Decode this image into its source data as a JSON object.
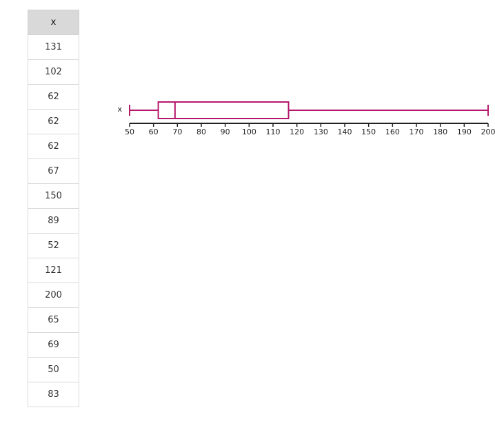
{
  "table": {
    "header": "x",
    "values": [
      131,
      102,
      62,
      62,
      62,
      67,
      150,
      89,
      52,
      121,
      200,
      65,
      69,
      50,
      83
    ]
  },
  "chart_data": {
    "type": "boxplot",
    "series": [
      {
        "name": "x",
        "min": 50,
        "q1": 62,
        "median": 69,
        "q3": 116.5,
        "max": 200
      }
    ],
    "xlim": [
      50,
      200
    ],
    "ticks": [
      50,
      60,
      70,
      80,
      90,
      100,
      110,
      120,
      130,
      140,
      150,
      160,
      170,
      180,
      190,
      200
    ],
    "tick_labels": [
      "50",
      "60",
      "70",
      "80",
      "90",
      "100",
      "110",
      "120",
      "130",
      "140",
      "150",
      "160",
      "170",
      "180",
      "190",
      "200"
    ],
    "color": "#b5186b",
    "axis_color": "#222222"
  }
}
